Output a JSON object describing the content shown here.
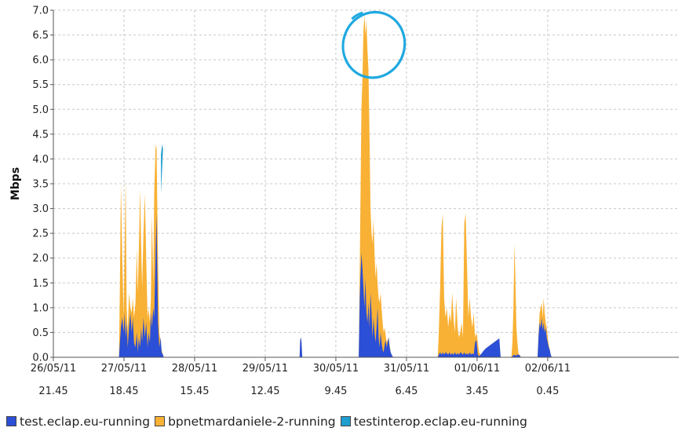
{
  "chart_data": {
    "type": "area",
    "stacked": true,
    "ylabel": "Mbps",
    "ylim": [
      0,
      7.0
    ],
    "yticks": [
      "0.0",
      "0.5",
      "1.0",
      "1.5",
      "2.0",
      "2.5",
      "3.0",
      "3.5",
      "4.0",
      "4.5",
      "5.0",
      "5.5",
      "6.0",
      "6.5",
      "7.0"
    ],
    "x_unit": "hours",
    "xlim": [
      0,
      186
    ],
    "xticks": [
      {
        "date": "26/05/11",
        "time": "21.45",
        "x": 0
      },
      {
        "date": "27/05/11",
        "time": "18.45",
        "x": 21
      },
      {
        "date": "28/05/11",
        "time": "15.45",
        "x": 42
      },
      {
        "date": "29/05/11",
        "time": "12.45",
        "x": 63
      },
      {
        "date": "30/05/11",
        "time": "9.45",
        "x": 84
      },
      {
        "date": "31/05/11",
        "time": "6.45",
        "x": 105
      },
      {
        "date": "01/06/11",
        "time": "3.45",
        "x": 126
      },
      {
        "date": "02/06/11",
        "time": "0.45",
        "x": 147
      }
    ],
    "grid": true,
    "legend_position": "bottom",
    "annotation": {
      "type": "circle",
      "near": "peak",
      "color": "#1fa8e0"
    },
    "series": [
      {
        "name": "test.eclap.eu-running",
        "color": "#2b4fd6",
        "x": [
          19.5,
          19.8,
          20.1,
          20.5,
          20.9,
          21.2,
          21.5,
          21.8,
          22.1,
          22.5,
          22.9,
          23.3,
          23.6,
          24.0,
          24.4,
          24.8,
          25.1,
          25.4,
          25.8,
          26.1,
          26.4,
          26.8,
          27.2,
          27.6,
          28.0,
          28.3,
          28.7,
          29.0,
          29.3,
          29.7,
          30.0,
          30.4,
          30.7,
          31.1,
          31.5,
          31.9,
          32.2,
          32.6,
          32.8,
          73.2,
          73.4,
          73.6,
          73.8,
          74.0,
          90.8,
          91.1,
          91.3,
          91.6,
          91.9,
          92.2,
          92.5,
          92.8,
          93.1,
          93.4,
          93.7,
          94.0,
          94.3,
          94.6,
          94.9,
          95.2,
          95.5,
          95.8,
          96.1,
          96.4,
          96.7,
          97.0,
          97.3,
          97.6,
          97.9,
          98.2,
          98.5,
          98.8,
          99.1,
          99.4,
          99.7,
          100.0,
          100.3,
          100.6,
          101.0,
          114.3,
          114.6,
          115.0,
          115.4,
          115.8,
          116.2,
          116.6,
          117.0,
          117.4,
          117.8,
          118.2,
          118.6,
          119.0,
          119.4,
          119.8,
          120.2,
          120.6,
          121.0,
          121.4,
          121.8,
          122.2,
          122.6,
          123.0,
          123.4,
          123.8,
          124.2,
          124.6,
          125.0,
          125.4,
          125.8,
          126.2,
          126.6,
          127.0,
          127.4,
          127.8,
          128.2,
          128.6,
          129.0,
          129.4,
          129.8,
          130.2,
          130.6,
          131.0,
          131.4,
          131.8,
          132.2,
          132.6,
          133.0,
          136.2,
          136.5,
          136.8,
          137.1,
          137.4,
          137.7,
          138.0,
          138.3,
          138.6,
          139.0,
          144.0,
          144.3,
          144.6,
          144.9,
          145.2,
          145.5,
          145.8,
          146.1,
          146.4,
          146.7,
          147.0,
          147.3,
          147.6,
          147.9,
          148.2
        ],
        "values": [
          0,
          0.3,
          0.6,
          0.8,
          0.5,
          0.9,
          0.4,
          0.7,
          0.2,
          0.6,
          0.9,
          0.5,
          0.8,
          0.3,
          0.2,
          0.5,
          0.1,
          0.4,
          0.2,
          0.6,
          0.3,
          0.8,
          0.4,
          0.7,
          0.2,
          0.5,
          0.3,
          0.9,
          0.6,
          1.0,
          0.8,
          2.1,
          2.9,
          0.7,
          0.2,
          0.4,
          0.1,
          0.05,
          0,
          0,
          0.35,
          0.4,
          0.3,
          0,
          0,
          1.2,
          1.6,
          2.1,
          1.8,
          1.4,
          1.0,
          1.6,
          0.9,
          0.7,
          1.1,
          0.6,
          1.3,
          0.9,
          0.4,
          0.8,
          0.5,
          0.3,
          0.6,
          1.0,
          0.4,
          0.2,
          0.5,
          0.3,
          0.15,
          0.1,
          0.25,
          0.35,
          0.2,
          0.3,
          0.4,
          0.2,
          0.1,
          0.05,
          0,
          0,
          0.05,
          0.1,
          0.05,
          0.1,
          0.05,
          0.1,
          0.08,
          0.05,
          0.1,
          0.05,
          0.08,
          0.05,
          0.1,
          0.05,
          0.08,
          0.05,
          0.1,
          0.08,
          0.05,
          0.1,
          0.05,
          0.08,
          0.05,
          0.1,
          0.05,
          0.08,
          0.05,
          0.3,
          0.35,
          0.05,
          0.02,
          0.05,
          0.08,
          0.12,
          0.15,
          0.18,
          0.2,
          0.22,
          0.24,
          0.26,
          0.28,
          0.3,
          0.32,
          0.34,
          0.36,
          0.38,
          0,
          0,
          0.02,
          0.04,
          0.05,
          0.03,
          0.04,
          0.06,
          0.04,
          0.05,
          0,
          0,
          0.45,
          0.7,
          0.6,
          0.8,
          0.55,
          0.7,
          0.5,
          0.6,
          0.4,
          0.3,
          0.2,
          0.15,
          0.05,
          0
        ],
        "stack_total": [
          0,
          1.5,
          3.5,
          2.0,
          0.8,
          2.2,
          3.6,
          1.0,
          0.5,
          1.3,
          1.0,
          0.9,
          1.2,
          0.8,
          1.1,
          2.2,
          1.3,
          2.1,
          3.4,
          2.3,
          1.4,
          2.5,
          3.3,
          2.0,
          0.8,
          1.0,
          0.7,
          1.2,
          2.9,
          1.5,
          3.3,
          4.3,
          4.2,
          2.0,
          0.5,
          0.3,
          0.15,
          0.05,
          0,
          0,
          0.35,
          0.4,
          0.3,
          0,
          0,
          1.8,
          3.0,
          5.0,
          5.6,
          6.6,
          6.9,
          6.5,
          6.8,
          6.2,
          5.8,
          4.5,
          3.0,
          2.5,
          2.3,
          2.8,
          2.1,
          1.6,
          1.9,
          1.5,
          1.2,
          1.1,
          1.3,
          1.0,
          0.7,
          0.5,
          0.6,
          0.45,
          0.3,
          0.35,
          0.4,
          0.25,
          0.1,
          0.05,
          0,
          0,
          0.5,
          1.4,
          2.6,
          2.9,
          1.2,
          0.8,
          1.0,
          0.6,
          0.9,
          0.7,
          1.3,
          0.8,
          0.5,
          1.2,
          0.6,
          0.4,
          0.5,
          0.7,
          0.4,
          2.7,
          2.9,
          1.9,
          0.8,
          1.2,
          0.8,
          0.6,
          0.9,
          0.4,
          0.5,
          0.3,
          0.1,
          0.05,
          0.08,
          0.12,
          0.15,
          0.18,
          0.2,
          0.22,
          0.24,
          0.26,
          0.28,
          0.3,
          0.32,
          0.34,
          0.36,
          0.38,
          0,
          0,
          0.3,
          1.0,
          2.3,
          1.5,
          0.6,
          0.3,
          0.08,
          0.05,
          0,
          0,
          0.5,
          0.9,
          1.0,
          1.1,
          0.8,
          1.2,
          0.9,
          0.7,
          0.6,
          0.4,
          0.25,
          0.15,
          0.05,
          0
        ]
      },
      {
        "name": "bpnetmardaniele-2-running",
        "color": "#f8b135"
      },
      {
        "name": "testinterop.eclap.eu-running",
        "color": "#1e9fcf"
      }
    ]
  },
  "legend": {
    "items": [
      {
        "label": "test.eclap.eu-running",
        "color": "#2b4fd6"
      },
      {
        "label": "bpnetmardaniele-2-running",
        "color": "#f8b135"
      },
      {
        "label": "testinterop.eclap.eu-running",
        "color": "#1e9fcf"
      }
    ]
  },
  "colors": {
    "grid": "#c8c8c8",
    "axis": "#555555",
    "annotation": "#1fa8e0"
  }
}
